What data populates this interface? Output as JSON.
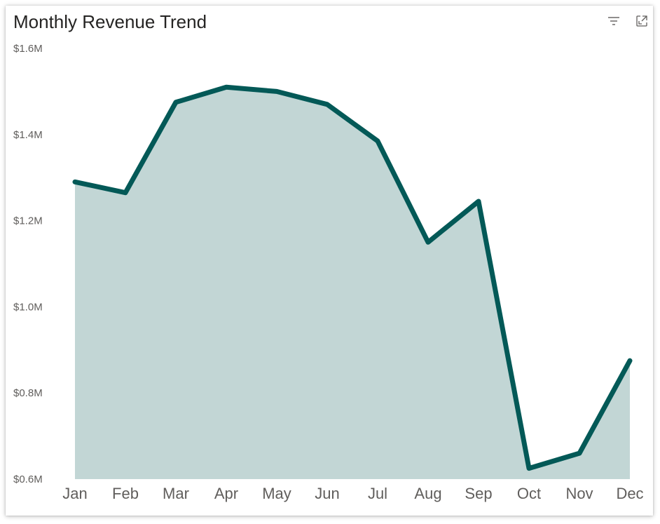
{
  "visual": {
    "title": "Monthly Revenue Trend"
  },
  "header_icons": {
    "filter": "filter-icon",
    "focus": "focus-mode-icon"
  },
  "colors": {
    "line": "#035957",
    "area": "#c2d6d5",
    "text": "#605e5c",
    "title": "#252423"
  },
  "chart_data": {
    "type": "area",
    "title": "Monthly Revenue Trend",
    "xlabel": "",
    "ylabel": "",
    "categories": [
      "Jan",
      "Feb",
      "Mar",
      "Apr",
      "May",
      "Jun",
      "Jul",
      "Aug",
      "Sep",
      "Oct",
      "Nov",
      "Dec"
    ],
    "series": [
      {
        "name": "Revenue",
        "values": [
          1.29,
          1.265,
          1.475,
          1.51,
          1.5,
          1.47,
          1.385,
          1.15,
          1.245,
          0.625,
          0.66,
          0.875
        ]
      }
    ],
    "ylim": [
      0.6,
      1.6
    ],
    "yticks": [
      0.6,
      0.8,
      1.0,
      1.2,
      1.4,
      1.6
    ],
    "ytick_labels": [
      "$0.6M",
      "$0.8M",
      "$1.0M",
      "$1.2M",
      "$1.4M",
      "$1.6M"
    ],
    "grid": false,
    "legend": "none"
  }
}
